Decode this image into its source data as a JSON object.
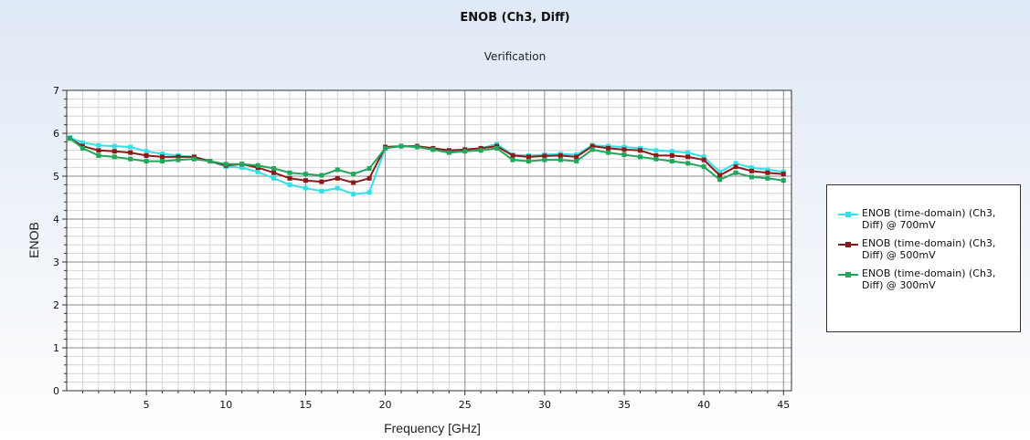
{
  "chart_data": {
    "type": "line",
    "title": "ENOB (Ch3, Diff)",
    "subtitle": "Verification",
    "xlabel": "Frequency [GHz]",
    "ylabel": "ENOB",
    "xlim": [
      0,
      45.5
    ],
    "ylim": [
      0,
      7
    ],
    "x_ticks": [
      5,
      10,
      15,
      20,
      25,
      30,
      35,
      40,
      45
    ],
    "y_ticks": [
      0,
      1,
      2,
      3,
      4,
      5,
      6,
      7
    ],
    "grid": true,
    "legend_position": "right",
    "x": [
      0.2,
      1.0,
      2.0,
      3.0,
      4.0,
      5.0,
      6.0,
      7.0,
      8.0,
      9.0,
      10.0,
      11.0,
      12.0,
      13.0,
      14.0,
      15.0,
      16.0,
      17.0,
      18.0,
      19.0,
      20.0,
      21.0,
      22.0,
      23.0,
      24.0,
      25.0,
      26.0,
      27.0,
      28.0,
      29.0,
      30.0,
      31.0,
      32.0,
      33.0,
      34.0,
      35.0,
      36.0,
      37.0,
      38.0,
      39.0,
      40.0,
      41.0,
      42.0,
      43.0,
      44.0,
      45.0
    ],
    "series": [
      {
        "name": "ENOB (time-domain) (Ch3, Diff) @ 700mV",
        "color": "#33e0e8",
        "values": [
          5.9,
          5.78,
          5.72,
          5.7,
          5.68,
          5.58,
          5.52,
          5.48,
          5.45,
          5.35,
          5.22,
          5.2,
          5.1,
          4.95,
          4.8,
          4.72,
          4.65,
          4.72,
          4.58,
          4.62,
          5.65,
          5.7,
          5.68,
          5.62,
          5.58,
          5.62,
          5.65,
          5.75,
          5.5,
          5.48,
          5.5,
          5.52,
          5.5,
          5.72,
          5.7,
          5.68,
          5.65,
          5.6,
          5.58,
          5.55,
          5.45,
          5.1,
          5.3,
          5.2,
          5.15,
          5.1
        ]
      },
      {
        "name": "ENOB (time-domain) (Ch3, Diff) @ 500mV",
        "color": "#8b1a1a",
        "values": [
          5.88,
          5.7,
          5.6,
          5.58,
          5.55,
          5.48,
          5.45,
          5.45,
          5.45,
          5.35,
          5.25,
          5.28,
          5.2,
          5.08,
          4.95,
          4.9,
          4.87,
          4.95,
          4.85,
          4.95,
          5.68,
          5.7,
          5.7,
          5.65,
          5.6,
          5.62,
          5.65,
          5.7,
          5.48,
          5.45,
          5.47,
          5.48,
          5.45,
          5.7,
          5.65,
          5.62,
          5.6,
          5.48,
          5.48,
          5.45,
          5.38,
          5.02,
          5.22,
          5.12,
          5.08,
          5.05
        ]
      },
      {
        "name": "ENOB (time-domain) (Ch3, Diff) @ 300mV",
        "color": "#22a65a",
        "values": [
          5.88,
          5.65,
          5.48,
          5.45,
          5.4,
          5.35,
          5.35,
          5.38,
          5.4,
          5.35,
          5.28,
          5.28,
          5.25,
          5.18,
          5.08,
          5.05,
          5.02,
          5.15,
          5.05,
          5.18,
          5.65,
          5.7,
          5.68,
          5.62,
          5.55,
          5.58,
          5.6,
          5.65,
          5.38,
          5.35,
          5.38,
          5.38,
          5.35,
          5.62,
          5.55,
          5.5,
          5.45,
          5.4,
          5.35,
          5.3,
          5.22,
          4.92,
          5.08,
          4.98,
          4.95,
          4.9
        ]
      }
    ]
  }
}
